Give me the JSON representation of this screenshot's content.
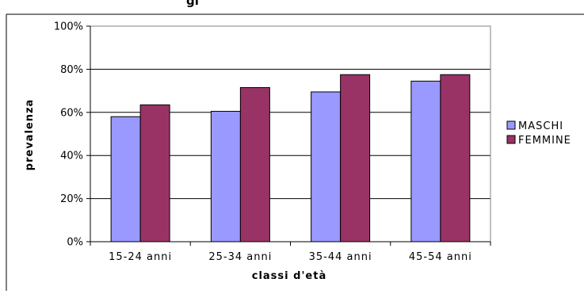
{
  "chart_data": {
    "type": "bar",
    "title": "",
    "title_partial_visible": "gi",
    "xlabel": "classi d'età",
    "ylabel": "prevalenza",
    "categories": [
      "15-24 anni",
      "25-34 anni",
      "35-44 anni",
      "45-54 anni"
    ],
    "series": [
      {
        "name": "MASCHI",
        "color": "#9999FF",
        "values": [
          58,
          60.5,
          69.5,
          74.5
        ]
      },
      {
        "name": "FEMMINE",
        "color": "#993366",
        "values": [
          63.5,
          71.5,
          77.5,
          77.5
        ]
      }
    ],
    "ylim": [
      0,
      100
    ],
    "yticks": [
      0,
      20,
      40,
      60,
      80,
      100
    ],
    "ytick_labels": [
      "0%",
      "20%",
      "40%",
      "60%",
      "80%",
      "100%"
    ],
    "grid": "horizontal",
    "legend_position": "right",
    "plot_background": "#ffffff"
  }
}
